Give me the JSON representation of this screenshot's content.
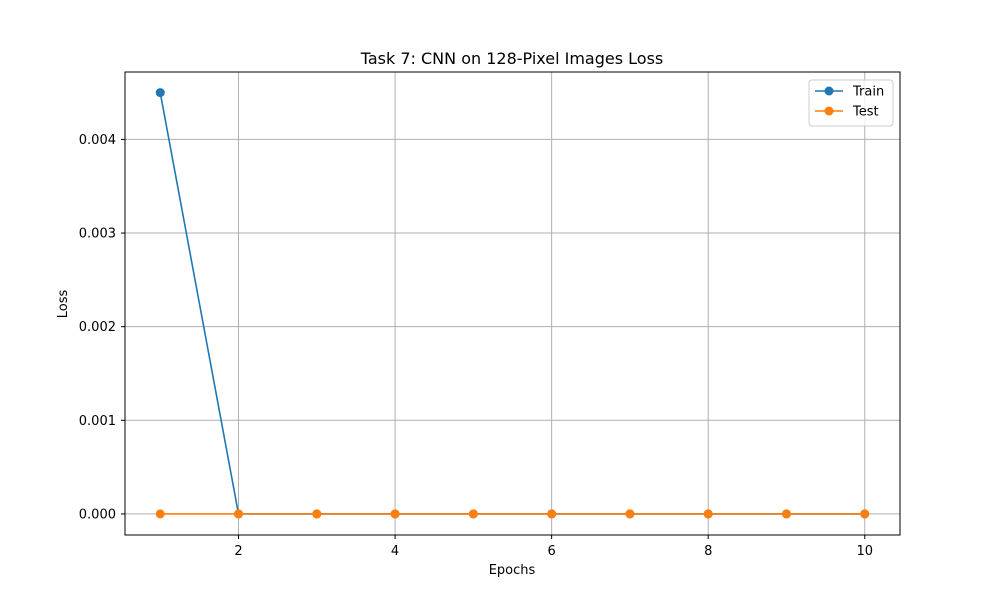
{
  "chart_data": {
    "type": "line",
    "title": "Task 7: CNN on 128-Pixel Images Loss",
    "xlabel": "Epochs",
    "ylabel": "Loss",
    "xlim": [
      0.55,
      10.45
    ],
    "ylim": [
      -0.000225,
      0.00472
    ],
    "xticks": [
      2,
      4,
      6,
      8,
      10
    ],
    "xtick_labels": [
      "2",
      "4",
      "6",
      "8",
      "10"
    ],
    "yticks": [
      0,
      0.001,
      0.002,
      0.003,
      0.004
    ],
    "ytick_labels": [
      "0.000",
      "0.001",
      "0.002",
      "0.003",
      "0.004"
    ],
    "grid": true,
    "legend_position": "top-right",
    "x": [
      1,
      2,
      3,
      4,
      5,
      6,
      7,
      8,
      9,
      10
    ],
    "series": [
      {
        "name": "Train",
        "color": "#1f77b4",
        "marker": "circle",
        "values": [
          0.0045,
          0,
          0,
          0,
          0,
          0,
          0,
          0,
          0,
          0
        ]
      },
      {
        "name": "Test",
        "color": "#ff7f0e",
        "marker": "circle",
        "values": [
          0,
          0,
          0,
          0,
          0,
          0,
          0,
          0,
          0,
          0
        ]
      }
    ]
  }
}
